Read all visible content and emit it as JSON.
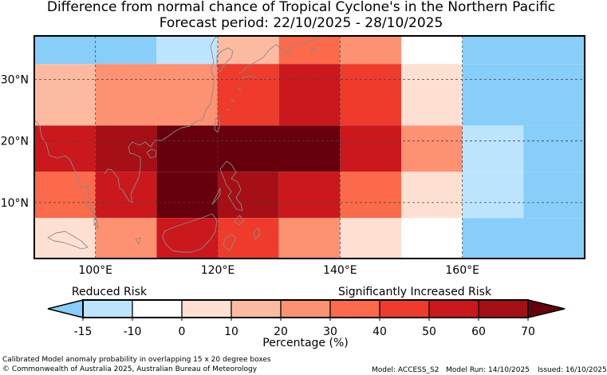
{
  "header": {
    "title_line1": "Difference from normal chance of Tropical Cyclone's in the Northern Pacific",
    "title_line2": "Forecast period: 22/10/2025 - 28/10/2025"
  },
  "map": {
    "lon_ticks": [
      {
        "value": 100,
        "label": "100°E"
      },
      {
        "value": 120,
        "label": "120°E"
      },
      {
        "value": 140,
        "label": "140°E"
      },
      {
        "value": 160,
        "label": "160°E"
      }
    ],
    "lat_ticks": [
      {
        "value": 30,
        "label": "30°N"
      },
      {
        "value": 20,
        "label": "20°N"
      },
      {
        "value": 10,
        "label": "10°N"
      }
    ],
    "risk_grid": {
      "row_lat_edges": [
        [
          32.5,
          37.5
        ],
        [
          22.5,
          32.5
        ],
        [
          15,
          22.5
        ],
        [
          7.5,
          15
        ],
        [
          0,
          7.5
        ]
      ],
      "rows": [
        {
          "cells": [
            {
              "lon_start": 90,
              "lon_end": 110,
              "bin": 0
            },
            {
              "lon_start": 110,
              "lon_end": 120,
              "bin": 1
            },
            {
              "lon_start": 120,
              "lon_end": 130,
              "bin": 4
            },
            {
              "lon_start": 130,
              "lon_end": 140,
              "bin": 6
            },
            {
              "lon_start": 140,
              "lon_end": 150,
              "bin": 5
            },
            {
              "lon_start": 150,
              "lon_end": 160,
              "bin": 2
            },
            {
              "lon_start": 160,
              "lon_end": 180,
              "bin": 0
            }
          ]
        },
        {
          "cells": [
            {
              "lon_start": 90,
              "lon_end": 100,
              "bin": 4
            },
            {
              "lon_start": 100,
              "lon_end": 120,
              "bin": 5
            },
            {
              "lon_start": 120,
              "lon_end": 130,
              "bin": 7
            },
            {
              "lon_start": 130,
              "lon_end": 140,
              "bin": 8
            },
            {
              "lon_start": 140,
              "lon_end": 150,
              "bin": 7
            },
            {
              "lon_start": 150,
              "lon_end": 160,
              "bin": 3
            },
            {
              "lon_start": 160,
              "lon_end": 180,
              "bin": 0
            }
          ]
        },
        {
          "cells": [
            {
              "lon_start": 90,
              "lon_end": 100,
              "bin": 8
            },
            {
              "lon_start": 100,
              "lon_end": 110,
              "bin": 9
            },
            {
              "lon_start": 110,
              "lon_end": 140,
              "bin": 10
            },
            {
              "lon_start": 140,
              "lon_end": 150,
              "bin": 8
            },
            {
              "lon_start": 150,
              "lon_end": 160,
              "bin": 5
            },
            {
              "lon_start": 160,
              "lon_end": 170,
              "bin": 1
            },
            {
              "lon_start": 170,
              "lon_end": 180,
              "bin": 0
            }
          ]
        },
        {
          "cells": [
            {
              "lon_start": 90,
              "lon_end": 100,
              "bin": 6
            },
            {
              "lon_start": 100,
              "lon_end": 110,
              "bin": 8
            },
            {
              "lon_start": 110,
              "lon_end": 120,
              "bin": 10
            },
            {
              "lon_start": 120,
              "lon_end": 130,
              "bin": 9
            },
            {
              "lon_start": 130,
              "lon_end": 140,
              "bin": 8
            },
            {
              "lon_start": 140,
              "lon_end": 150,
              "bin": 6
            },
            {
              "lon_start": 150,
              "lon_end": 160,
              "bin": 3
            },
            {
              "lon_start": 160,
              "lon_end": 170,
              "bin": 1
            },
            {
              "lon_start": 170,
              "lon_end": 180,
              "bin": 0
            }
          ]
        },
        {
          "cells": [
            {
              "lon_start": 90,
              "lon_end": 100,
              "bin": 3
            },
            {
              "lon_start": 100,
              "lon_end": 110,
              "bin": 5
            },
            {
              "lon_start": 110,
              "lon_end": 120,
              "bin": 8
            },
            {
              "lon_start": 120,
              "lon_end": 130,
              "bin": 7
            },
            {
              "lon_start": 130,
              "lon_end": 140,
              "bin": 5
            },
            {
              "lon_start": 140,
              "lon_end": 150,
              "bin": 3
            },
            {
              "lon_start": 150,
              "lon_end": 160,
              "bin": 2
            },
            {
              "lon_start": 160,
              "lon_end": 180,
              "bin": 0
            }
          ]
        }
      ]
    }
  },
  "colorbar": {
    "reduced_label": "Reduced Risk",
    "increased_label": "Significantly Increased Risk",
    "axis_label": "Percentage (%)",
    "tick_labels": [
      "-15",
      "-10",
      "0",
      "10",
      "20",
      "30",
      "40",
      "50",
      "60",
      "70"
    ],
    "under_color": "#87cefa",
    "over_color": "#67000d",
    "bins": [
      {
        "range": [
          -15,
          -10
        ],
        "color": "#bde4fd"
      },
      {
        "range": [
          -10,
          0
        ],
        "color": "#ffffff"
      },
      {
        "range": [
          0,
          10
        ],
        "color": "#fee0d2"
      },
      {
        "range": [
          10,
          20
        ],
        "color": "#fcbba1"
      },
      {
        "range": [
          20,
          30
        ],
        "color": "#fc9272"
      },
      {
        "range": [
          30,
          40
        ],
        "color": "#fb6a4a"
      },
      {
        "range": [
          40,
          50
        ],
        "color": "#ef3b2c"
      },
      {
        "range": [
          50,
          60
        ],
        "color": "#cb181d"
      },
      {
        "range": [
          60,
          70
        ],
        "color": "#a50f15"
      }
    ]
  },
  "risk_bin_colors": [
    "#87cefa",
    "#bde4fd",
    "#ffffff",
    "#fee0d2",
    "#fcbba1",
    "#fc9272",
    "#fb6a4a",
    "#ef3b2c",
    "#cb181d",
    "#a50f15",
    "#67000d"
  ],
  "footer": {
    "description": "Calibrated Model anomaly probability in overlapping 15 x 20 degree boxes",
    "copyright": "© Commonwealth of Australia 2025, Australian Bureau of Meteorology",
    "model": "Model: ACCESS_S2",
    "model_run": "Model Run: 14/10/2025",
    "issued": "Issued: 16/10/2025"
  }
}
